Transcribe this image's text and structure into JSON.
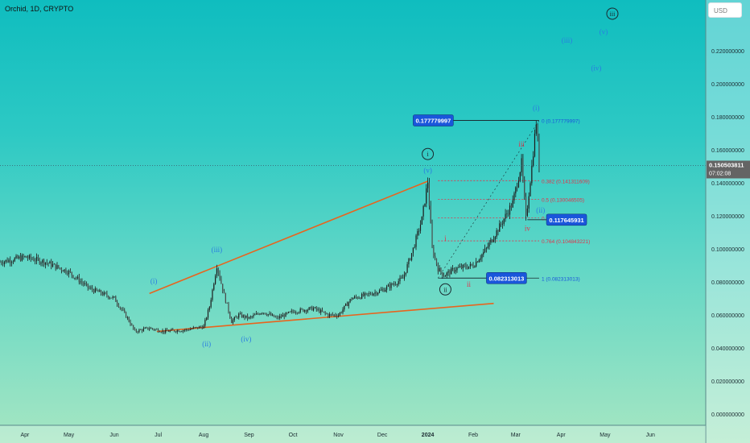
{
  "header": {
    "title": "Orchid, 1D, CRYPTO",
    "currency": "USD"
  },
  "colors": {
    "candle": "#1b1b1b",
    "trendline": "#e8641e",
    "wave_blue": "#2a7de1",
    "wave_red": "#e0344c",
    "fib_line": "#e0344c",
    "label_blue_bg": "#1a56db",
    "price_label_bg": "#111111",
    "crosshair": "#3b5a6a"
  },
  "chart_data": {
    "type": "candlestick",
    "symbol": "Orchid",
    "interval": "1D",
    "exchange": "CRYPTO",
    "ylim": [
      0.0,
      0.24
    ],
    "x_month_ticks": [
      "Apr",
      "May",
      "Jun",
      "Jul",
      "Aug",
      "Sep",
      "Oct",
      "Nov",
      "Dec",
      "2024",
      "Feb",
      "Mar",
      "Apr",
      "May",
      "Jun"
    ],
    "y_ticks": [
      "0.220000000",
      "0.200000000",
      "0.180000000",
      "0.160000000",
      "0.140000000",
      "0.120000000",
      "0.100000000",
      "0.080000000",
      "0.060000000",
      "0.040000000",
      "0.020000000",
      "0.000000000"
    ],
    "y_tick_values": [
      0.22,
      0.2,
      0.18,
      0.16,
      0.14,
      0.12,
      0.1,
      0.08,
      0.06,
      0.04,
      0.02,
      0.0
    ],
    "current_price": {
      "label": "0.150503811",
      "countdown": "07:02:08",
      "value": 0.150503811
    },
    "price_path": [
      [
        "2023-03-15",
        0.092
      ],
      [
        "2023-04-01",
        0.095
      ],
      [
        "2023-04-15",
        0.092
      ],
      [
        "2023-05-01",
        0.086
      ],
      [
        "2023-05-15",
        0.076
      ],
      [
        "2023-06-01",
        0.07
      ],
      [
        "2023-06-10",
        0.058
      ],
      [
        "2023-06-15",
        0.05
      ],
      [
        "2023-06-25",
        0.052
      ],
      [
        "2023-07-05",
        0.05
      ],
      [
        "2023-07-20",
        0.051
      ],
      [
        "2023-08-01",
        0.053
      ],
      [
        "2023-08-05",
        0.065
      ],
      [
        "2023-08-10",
        0.09
      ],
      [
        "2023-08-15",
        0.072
      ],
      [
        "2023-08-20",
        0.056
      ],
      [
        "2023-08-25",
        0.06
      ],
      [
        "2023-09-01",
        0.058
      ],
      [
        "2023-09-10",
        0.062
      ],
      [
        "2023-09-20",
        0.058
      ],
      [
        "2023-10-01",
        0.062
      ],
      [
        "2023-10-15",
        0.064
      ],
      [
        "2023-10-25",
        0.06
      ],
      [
        "2023-11-01",
        0.06
      ],
      [
        "2023-11-10",
        0.07
      ],
      [
        "2023-11-20",
        0.072
      ],
      [
        "2023-12-01",
        0.075
      ],
      [
        "2023-12-15",
        0.082
      ],
      [
        "2023-12-22",
        0.1
      ],
      [
        "2023-12-28",
        0.118
      ],
      [
        "2024-01-01",
        0.141
      ],
      [
        "2024-01-04",
        0.1
      ],
      [
        "2024-01-08",
        0.088
      ],
      [
        "2024-01-12",
        0.084
      ],
      [
        "2024-01-20",
        0.088
      ],
      [
        "2024-02-01",
        0.09
      ],
      [
        "2024-02-10",
        0.1
      ],
      [
        "2024-02-20",
        0.115
      ],
      [
        "2024-02-28",
        0.128
      ],
      [
        "2024-03-05",
        0.152
      ],
      [
        "2024-03-08",
        0.118
      ],
      [
        "2024-03-12",
        0.15
      ],
      [
        "2024-03-15",
        0.177
      ],
      [
        "2024-03-17",
        0.15
      ]
    ],
    "trendlines": [
      {
        "from": [
          "2023-06-25",
          0.073
        ],
        "to": [
          "2024-01-01",
          0.141
        ]
      },
      {
        "from": [
          "2023-06-30",
          0.05
        ],
        "to": [
          "2024-02-15",
          0.067
        ]
      }
    ],
    "fib_levels": [
      {
        "ratio": "0",
        "label": "0 (0.177779997)",
        "value": 0.177779997
      },
      {
        "ratio": "0.382",
        "label": "0.382 (0.141311609)",
        "value": 0.141311609
      },
      {
        "ratio": "0.5",
        "label": "0.5 (0.130046505)",
        "value": 0.130046505
      },
      {
        "ratio": "0.618",
        "label": "0.618 (0.11...",
        "value": 0.118781401
      },
      {
        "ratio": "0.764",
        "label": "0.764 (0.104843221)",
        "value": 0.104843221
      },
      {
        "ratio": "1",
        "label": "1 (0.082313013)",
        "value": 0.082313013
      }
    ],
    "price_labels": [
      {
        "text": "0.177779997",
        "value": 0.177779997
      },
      {
        "text": "0.117645931",
        "value": 0.117645931
      },
      {
        "text": "0.082313013",
        "value": 0.082313013
      }
    ],
    "wave_labels": [
      {
        "text": "(i)",
        "date": "2023-06-28",
        "value": 0.079,
        "color": "blue"
      },
      {
        "text": "(ii)",
        "date": "2023-08-03",
        "value": 0.041,
        "color": "blue"
      },
      {
        "text": "(iii)",
        "date": "2023-08-10",
        "value": 0.098,
        "color": "blue"
      },
      {
        "text": "(iv)",
        "date": "2023-08-30",
        "value": 0.044,
        "color": "blue"
      },
      {
        "text": "(v)",
        "date": "2024-01-01",
        "value": 0.146,
        "color": "blue"
      },
      {
        "text": "i",
        "date": "2024-01-01",
        "value": 0.156,
        "color": "dark",
        "circled": true
      },
      {
        "text": "ii",
        "date": "2024-01-13",
        "value": 0.074,
        "color": "dark",
        "circled": true
      },
      {
        "text": "i",
        "date": "2024-01-13",
        "value": 0.105,
        "color": "red"
      },
      {
        "text": "ii",
        "date": "2024-01-29",
        "value": 0.077,
        "color": "red"
      },
      {
        "text": "iii",
        "date": "2024-03-05",
        "value": 0.162,
        "color": "red"
      },
      {
        "text": "iv",
        "date": "2024-03-09",
        "value": 0.111,
        "color": "red"
      },
      {
        "text": "(i)",
        "date": "2024-03-15",
        "value": 0.184,
        "color": "blue"
      },
      {
        "text": "(ii)",
        "date": "2024-03-18",
        "value": 0.122,
        "color": "blue"
      },
      {
        "text": "(iii)",
        "date": "2024-04-05",
        "value": 0.225,
        "color": "blue"
      },
      {
        "text": "(iv)",
        "date": "2024-04-25",
        "value": 0.208,
        "color": "blue"
      },
      {
        "text": "(v)",
        "date": "2024-04-30",
        "value": 0.23,
        "color": "blue"
      },
      {
        "text": "iii",
        "date": "2024-05-06",
        "value": 0.241,
        "color": "dark",
        "circled": true
      }
    ]
  }
}
